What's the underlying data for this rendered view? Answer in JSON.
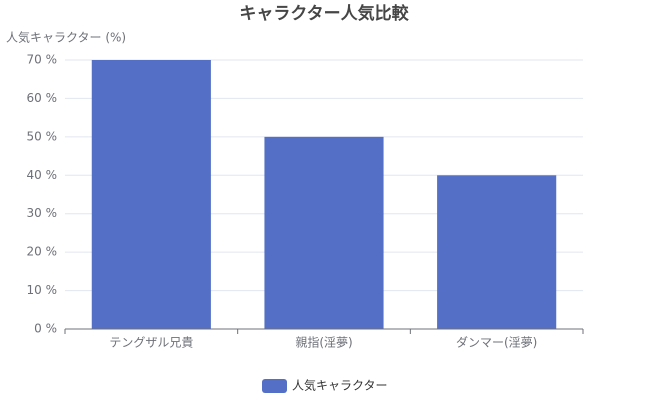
{
  "chart_data": {
    "type": "bar",
    "title": "キャラクター人気比較",
    "y_label": "人気キャラクター (%)",
    "categories": [
      "テングザル兄貴",
      "親指(淫夢)",
      "ダンマー(淫夢)"
    ],
    "series": [
      {
        "name": "人気キャラクター",
        "color": "#5470c6",
        "values": [
          70,
          50,
          40
        ]
      }
    ],
    "ylim": [
      0,
      70
    ],
    "yticks": [
      {
        "value": 0,
        "label": "0 %"
      },
      {
        "value": 10,
        "label": "10 %"
      },
      {
        "value": 20,
        "label": "20 %"
      },
      {
        "value": 30,
        "label": "30 %"
      },
      {
        "value": 40,
        "label": "40 %"
      },
      {
        "value": 50,
        "label": "50 %"
      },
      {
        "value": 60,
        "label": "60 %"
      },
      {
        "value": 70,
        "label": "70 %"
      }
    ],
    "grid": true,
    "legend": "bottom"
  }
}
